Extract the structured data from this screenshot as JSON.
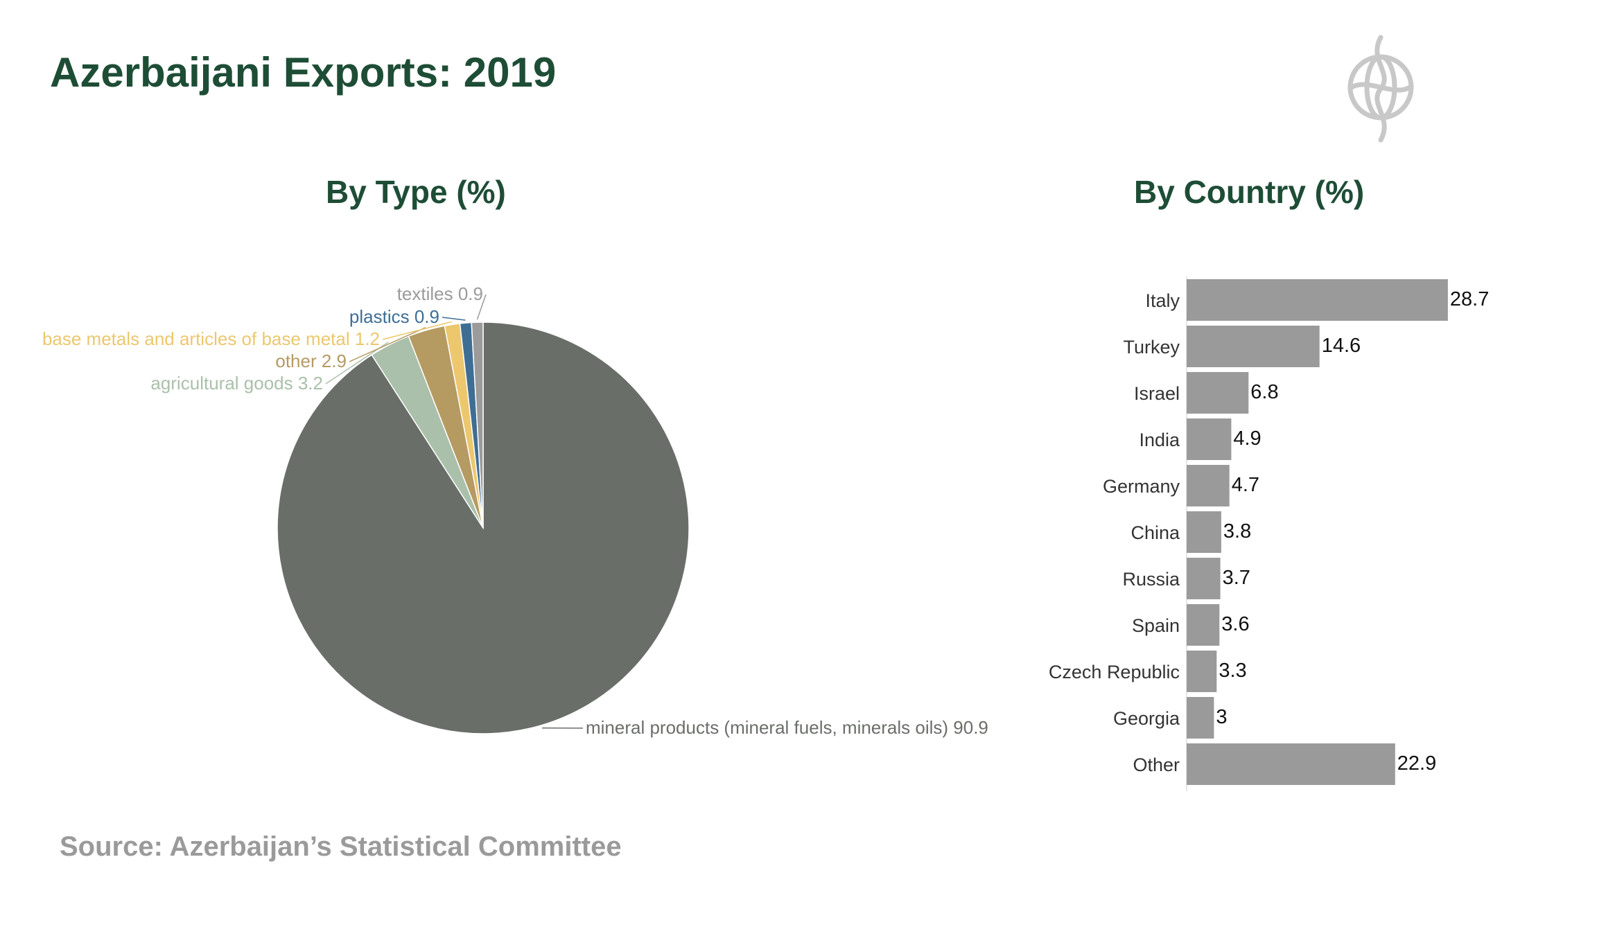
{
  "page": {
    "title": "Azerbaijani Exports: 2019",
    "source": "Source: Azerbaijan’s Statistical Committee"
  },
  "colors": {
    "title": "#1e4d36",
    "source": "#9a9a9a",
    "bar": "#9a9a9a",
    "logo": "#c8c8c8"
  },
  "logo": {
    "icon": "globe-emblem-icon"
  },
  "chart_data": [
    {
      "type": "pie",
      "title": "By Type (%)",
      "start": "12 o'clock",
      "direction": "clockwise",
      "slices": [
        {
          "label": "mineral products (mineral fuels, minerals oils)",
          "value": 90.9,
          "color": "#6a6e69"
        },
        {
          "label": "agricultural goods",
          "value": 3.2,
          "color": "#aac0aa"
        },
        {
          "label": "other",
          "value": 2.9,
          "color": "#b59a62"
        },
        {
          "label": "base metals and articles of base metal",
          "value": 1.2,
          "color": "#ecc76e"
        },
        {
          "label": "plastics",
          "value": 0.9,
          "color": "#3f6e94"
        },
        {
          "label": "textiles",
          "value": 0.9,
          "color": "#9b9b9b"
        }
      ]
    },
    {
      "type": "bar",
      "orientation": "horizontal",
      "title": "By Country (%)",
      "categories": [
        "Italy",
        "Turkey",
        "Israel",
        "India",
        "Germany",
        "China",
        "Russia",
        "Spain",
        "Czech Republic",
        "Georgia",
        "Other"
      ],
      "values": [
        28.7,
        14.6,
        6.8,
        4.9,
        4.7,
        3.8,
        3.7,
        3.6,
        3.3,
        3,
        22.9
      ],
      "data_labels": [
        "28.7",
        "14.6",
        "6.8",
        "4.9",
        "4.7",
        "3.8",
        "3.7",
        "3.6",
        "3.3",
        "3",
        "22.9"
      ],
      "xlim": [
        0,
        30
      ],
      "grid": false,
      "legend": "none"
    }
  ]
}
